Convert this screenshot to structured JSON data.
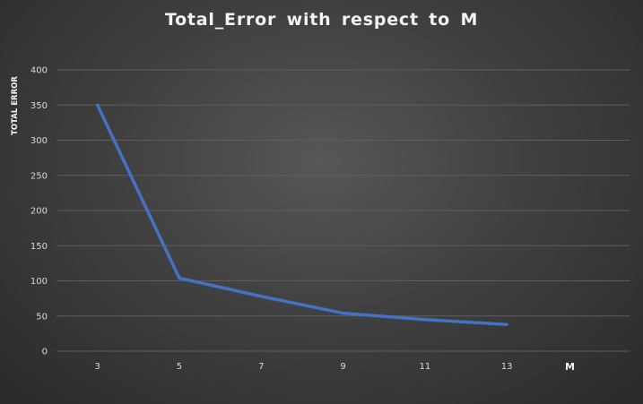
{
  "chart_data": {
    "type": "line",
    "title": "Total_Error  with respect to M",
    "xlabel": "M",
    "ylabel": "TOTAL ERROR",
    "x": [
      3,
      5,
      7,
      9,
      11,
      13
    ],
    "x_tick_labels": [
      "3",
      "5",
      "7",
      "9",
      "11",
      "13"
    ],
    "series": [
      {
        "values": [
          350,
          104,
          78,
          54,
          45,
          38
        ]
      }
    ],
    "ylim": [
      0,
      400
    ],
    "y_ticks": [
      0,
      50,
      100,
      150,
      200,
      250,
      300,
      350,
      400
    ],
    "y_tick_labels": [
      "0",
      "50",
      "100",
      "150",
      "200",
      "250",
      "300",
      "350",
      "400"
    ],
    "grid": "horizontal",
    "legend": "none",
    "colors": {
      "line": "#4472c4",
      "grid": "#5e5e5e",
      "text": "#d9d9d9"
    }
  }
}
